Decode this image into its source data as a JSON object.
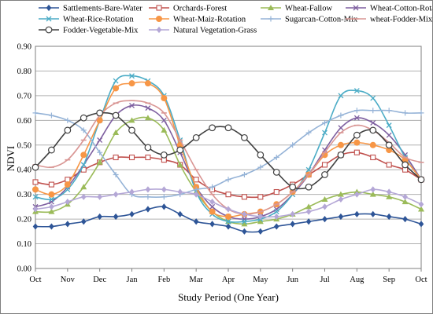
{
  "chart_data": {
    "type": "line",
    "title": "",
    "xlabel": "Study Period (One Year)",
    "ylabel": "NDVI",
    "ylim": [
      0,
      0.9
    ],
    "yticks": [
      "0.00",
      "0.10",
      "0.20",
      "0.30",
      "0.40",
      "0.50",
      "0.60",
      "0.70",
      "0.80",
      "0.90"
    ],
    "xticks": [
      "Oct",
      "Nov",
      "Dec",
      "Jan",
      "Feb",
      "Mar",
      "Apr",
      "May",
      "Jun",
      "Jul",
      "Aug",
      "Sep",
      "Oct"
    ],
    "grid": "horizontal",
    "legend_position": "top",
    "x": [
      0,
      0.5,
      1,
      1.5,
      2,
      2.5,
      3,
      3.5,
      4,
      4.5,
      5,
      5.5,
      6,
      6.5,
      7,
      7.5,
      8,
      8.5,
      9,
      9.5,
      10,
      10.5,
      11,
      11.5,
      12
    ],
    "series": [
      {
        "name": "Sattlements-Bare-Water",
        "color": "#2e5597",
        "marker": "diamond",
        "values": [
          0.17,
          0.17,
          0.18,
          0.19,
          0.21,
          0.21,
          0.22,
          0.24,
          0.25,
          0.22,
          0.19,
          0.18,
          0.17,
          0.15,
          0.15,
          0.17,
          0.18,
          0.19,
          0.2,
          0.21,
          0.22,
          0.22,
          0.21,
          0.2,
          0.18
        ]
      },
      {
        "name": "Orchards-Forest",
        "color": "#c0504d",
        "marker": "open-square",
        "values": [
          0.35,
          0.34,
          0.36,
          0.4,
          0.43,
          0.45,
          0.45,
          0.45,
          0.44,
          0.42,
          0.36,
          0.32,
          0.3,
          0.29,
          0.29,
          0.31,
          0.34,
          0.38,
          0.42,
          0.46,
          0.47,
          0.45,
          0.42,
          0.4,
          0.36
        ]
      },
      {
        "name": "Wheat-Fallow",
        "color": "#9bbb59",
        "marker": "triangle",
        "values": [
          0.23,
          0.23,
          0.26,
          0.33,
          0.43,
          0.55,
          0.6,
          0.61,
          0.56,
          0.42,
          0.31,
          0.23,
          0.19,
          0.18,
          0.19,
          0.2,
          0.22,
          0.25,
          0.28,
          0.3,
          0.31,
          0.3,
          0.29,
          0.27,
          0.24
        ]
      },
      {
        "name": "Wheat-Cotton-Rotation",
        "color": "#7e5fa0",
        "marker": "x",
        "values": [
          0.25,
          0.27,
          0.33,
          0.42,
          0.52,
          0.62,
          0.66,
          0.65,
          0.6,
          0.47,
          0.33,
          0.25,
          0.21,
          0.2,
          0.21,
          0.24,
          0.3,
          0.38,
          0.48,
          0.57,
          0.61,
          0.59,
          0.54,
          0.46,
          0.36
        ]
      },
      {
        "name": "Wheat-Rice-Rotation",
        "color": "#4bacc6",
        "marker": "x",
        "values": [
          0.29,
          0.28,
          0.32,
          0.42,
          0.6,
          0.76,
          0.78,
          0.76,
          0.7,
          0.52,
          0.31,
          0.22,
          0.19,
          0.19,
          0.2,
          0.23,
          0.3,
          0.4,
          0.55,
          0.7,
          0.72,
          0.69,
          0.58,
          0.45,
          0.36
        ]
      },
      {
        "name": "Wheat-Maiz-Rotation",
        "color": "#f79646",
        "marker": "circle",
        "values": [
          0.32,
          0.3,
          0.34,
          0.46,
          0.6,
          0.73,
          0.75,
          0.75,
          0.69,
          0.5,
          0.33,
          0.23,
          0.21,
          0.22,
          0.23,
          0.26,
          0.31,
          0.38,
          0.46,
          0.5,
          0.51,
          0.5,
          0.48,
          0.44,
          0.36
        ]
      },
      {
        "name": "Sugarcan-Cotton-Mix",
        "color": "#95b3d7",
        "marker": "plus",
        "values": [
          0.63,
          0.62,
          0.6,
          0.56,
          0.47,
          0.38,
          0.3,
          0.29,
          0.29,
          0.3,
          0.32,
          0.33,
          0.36,
          0.38,
          0.41,
          0.45,
          0.5,
          0.55,
          0.59,
          0.62,
          0.64,
          0.64,
          0.64,
          0.63,
          0.63
        ]
      },
      {
        "name": "wheat-Fodder-Mix",
        "color": "#d99694",
        "marker": "dash",
        "values": [
          0.42,
          0.41,
          0.44,
          0.52,
          0.62,
          0.67,
          0.68,
          0.67,
          0.63,
          0.52,
          0.4,
          0.3,
          0.24,
          0.22,
          0.23,
          0.26,
          0.31,
          0.38,
          0.47,
          0.55,
          0.58,
          0.56,
          0.51,
          0.45,
          0.43
        ]
      },
      {
        "name": "Fodder-Vegetable-Mix",
        "color": "#404040",
        "marker": "open-circle",
        "values": [
          0.41,
          0.48,
          0.56,
          0.61,
          0.63,
          0.62,
          0.56,
          0.49,
          0.46,
          0.48,
          0.53,
          0.57,
          0.57,
          0.53,
          0.46,
          0.39,
          0.33,
          0.33,
          0.38,
          0.46,
          0.54,
          0.56,
          0.5,
          0.42,
          0.36
        ]
      },
      {
        "name": "Natural Vegetation-Grass",
        "color": "#b4a7d6",
        "marker": "diamond",
        "values": [
          0.24,
          0.25,
          0.27,
          0.29,
          0.29,
          0.3,
          0.31,
          0.32,
          0.32,
          0.31,
          0.3,
          0.27,
          0.24,
          0.22,
          0.21,
          0.21,
          0.22,
          0.23,
          0.25,
          0.28,
          0.3,
          0.32,
          0.31,
          0.29,
          0.26
        ]
      }
    ]
  }
}
